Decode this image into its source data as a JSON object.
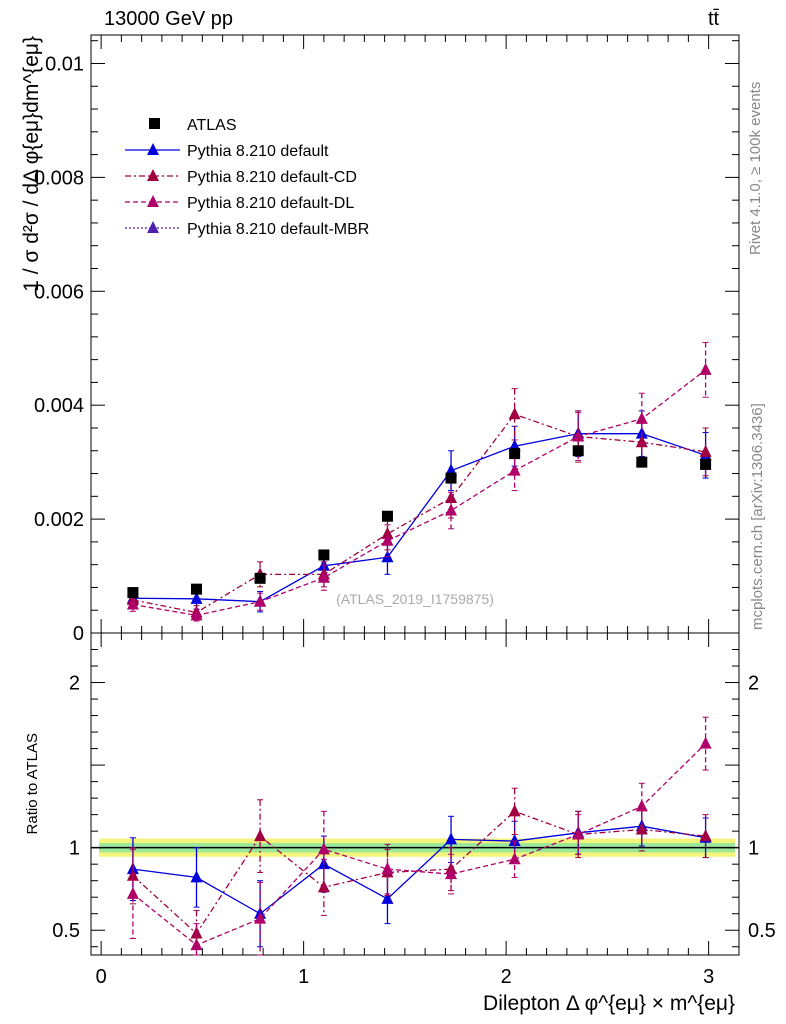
{
  "header": {
    "energy_label": "13000 GeV pp",
    "process_label": "tt̄"
  },
  "side_labels": {
    "rivet": "Rivet 4.1.0, ≥ 100k events",
    "source": "mcplots.cern.ch [arXiv:1306.3436]"
  },
  "watermark": "(ATLAS_2019_I1759875)",
  "chart_data": {
    "type": "scatter",
    "title": "13000 GeV pp",
    "xlabel": "Dilepton Δ φ^{eμ} × m^{eμ}",
    "ylabel": "1 / σ  d²σ / dΔ φ{eμ}dm^{eμ}",
    "ratio_ylabel": "Ratio to ATLAS",
    "xlim": [
      -0.05,
      3.15
    ],
    "ylim": [
      0,
      0.0105
    ],
    "ratio_ylim": [
      0.35,
      2.3
    ],
    "x_ticks": [
      0,
      1,
      2,
      3
    ],
    "y_ticks": [
      0.002,
      0.004,
      0.006,
      0.008,
      0.01
    ],
    "y_tick_labels": [
      "0.002",
      "0.004",
      "0.006",
      "0.008",
      "0.01"
    ],
    "y_zero_label": "0",
    "ratio_ticks": [
      0.5,
      1,
      2
    ],
    "ratio_tick_labels": [
      "0.5",
      "1",
      "2"
    ],
    "x": [
      0.157,
      0.471,
      0.785,
      1.1,
      1.414,
      1.728,
      2.042,
      2.356,
      2.67,
      2.985
    ],
    "legend_position": "top-left",
    "series": [
      {
        "name": "ATLAS",
        "style": "data",
        "color": "#000000",
        "values": [
          0.00071,
          0.00077,
          0.00096,
          0.00137,
          0.00205,
          0.00272,
          0.00315,
          0.0032,
          0.003,
          0.00296
        ],
        "errors": [
          4e-05,
          4e-05,
          5e-05,
          6e-05,
          7e-05,
          8e-05,
          9e-05,
          9e-05,
          9e-05,
          9e-05
        ]
      },
      {
        "name": "Pythia 8.210 default",
        "style": "solid",
        "color": "#0000dd",
        "values": [
          0.00061,
          0.0006,
          0.00055,
          0.00118,
          0.00133,
          0.00285,
          0.00328,
          0.0035,
          0.0035,
          0.00312
        ],
        "errors": [
          0.00015,
          0.00018,
          0.00018,
          0.00025,
          0.0003,
          0.00035,
          0.00035,
          0.0004,
          0.0004,
          0.0004
        ],
        "ratio": [
          0.87,
          0.82,
          0.6,
          0.9,
          0.69,
          1.05,
          1.04,
          1.09,
          1.13,
          1.06
        ],
        "ratio_errors": [
          0.19,
          0.18,
          0.2,
          0.17,
          0.15,
          0.14,
          0.12,
          0.13,
          0.12,
          0.12
        ]
      },
      {
        "name": "Pythia 8.210 default-CD",
        "style": "dashdot",
        "color": "#a00040",
        "values": [
          0.00058,
          0.00036,
          0.00103,
          0.00103,
          0.00174,
          0.00237,
          0.00384,
          0.00345,
          0.00335,
          0.00318
        ],
        "errors": [
          0.00012,
          0.00012,
          0.00022,
          0.00022,
          0.00028,
          0.00035,
          0.00045,
          0.00045,
          0.00042,
          0.00042
        ],
        "ratio": [
          0.83,
          0.48,
          1.07,
          0.76,
          0.85,
          0.87,
          1.22,
          1.08,
          1.11,
          1.07
        ],
        "ratio_errors": [
          0.17,
          0.14,
          0.22,
          0.17,
          0.14,
          0.13,
          0.14,
          0.14,
          0.13,
          0.13
        ]
      },
      {
        "name": "Pythia 8.210 default-DL",
        "style": "dashed",
        "color": "#b0006a",
        "values": [
          0.0005,
          0.00031,
          0.00055,
          0.00097,
          0.00162,
          0.00215,
          0.00285,
          0.00345,
          0.00376,
          0.00462
        ],
        "errors": [
          0.00012,
          0.0001,
          0.00015,
          0.00022,
          0.00028,
          0.00032,
          0.00035,
          0.00042,
          0.00045,
          0.00048
        ],
        "ratio": [
          0.72,
          0.41,
          0.57,
          0.99,
          0.87,
          0.84,
          0.93,
          1.08,
          1.25,
          1.63
        ],
        "ratio_errors": [
          0.27,
          0.13,
          0.22,
          0.23,
          0.15,
          0.12,
          0.11,
          0.12,
          0.14,
          0.16
        ]
      },
      {
        "name": "Pythia 8.210 default-MBR",
        "style": "dotted",
        "color": "#5020b0",
        "values": [],
        "errors": [],
        "ratio": [],
        "ratio_errors": []
      }
    ]
  }
}
